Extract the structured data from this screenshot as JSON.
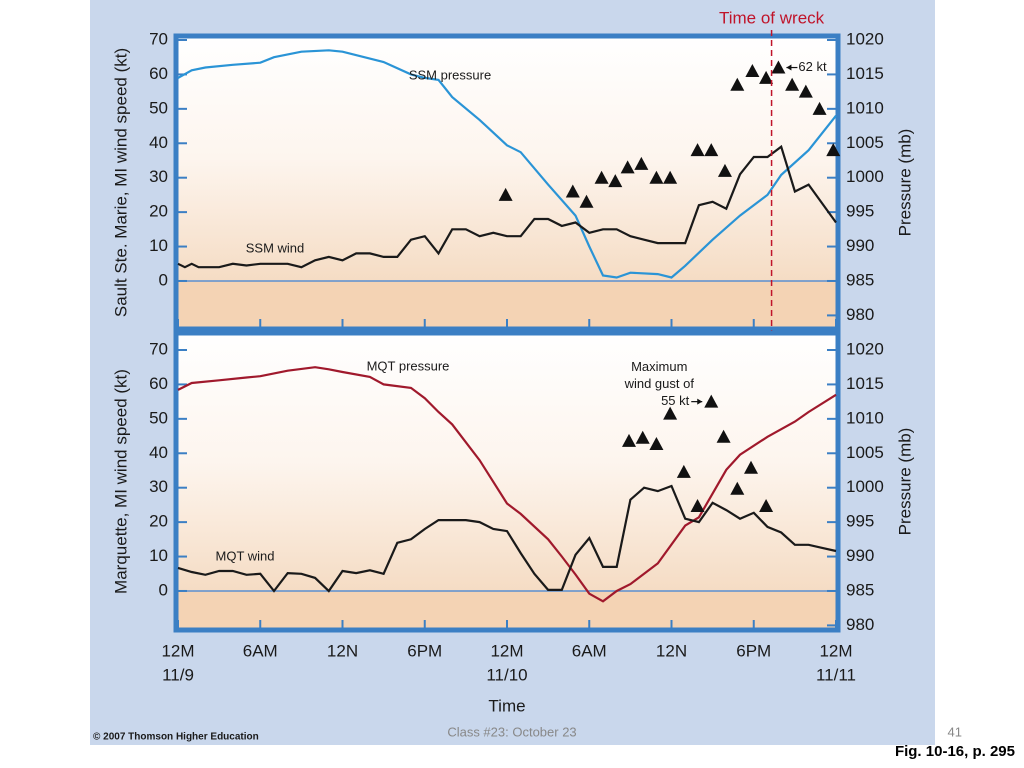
{
  "chart_data": [
    {
      "type": "line",
      "ylabel": "Sault Ste. Marie, MI wind speed (kt)",
      "y2label": "Pressure (mb)",
      "xlim": [
        0,
        48
      ],
      "ylim": [
        -10,
        70
      ],
      "yticks": [
        0,
        10,
        20,
        30,
        40,
        50,
        60,
        70
      ],
      "y2lim": [
        980,
        1020
      ],
      "y2ticks": [
        980,
        985,
        990,
        995,
        1000,
        1005,
        1010,
        1015,
        1020
      ],
      "marker_line": {
        "label": "Time of wreck",
        "x": 43.3,
        "color": "#c0142a"
      },
      "annotation": {
        "lines": [
          "62 kt"
        ],
        "series": 2,
        "point": 15
      },
      "series": [
        {
          "name": "SSM pressure",
          "color": "#2a94d6",
          "axis": "y2",
          "x": [
            0,
            1,
            2,
            4,
            6,
            7,
            9,
            11,
            12,
            15,
            17,
            18,
            19,
            20,
            22,
            24,
            25,
            27,
            29,
            30,
            31,
            32,
            33,
            35,
            36,
            37,
            39,
            41,
            43,
            44,
            46,
            48
          ],
          "values": [
            1014.5,
            1015.6,
            1016,
            1016.4,
            1016.7,
            1017.5,
            1018.3,
            1018.5,
            1018.3,
            1016.8,
            1015,
            1014.5,
            1014.2,
            1011.7,
            1008.4,
            1004.7,
            1003.7,
            999,
            994.5,
            990,
            985.8,
            985.5,
            986.2,
            986,
            985.5,
            987.2,
            991,
            994.5,
            997.5,
            1000.4,
            1004,
            1009
          ]
        },
        {
          "name": "SSM wind",
          "color": "#1a1a1a",
          "x": [
            0,
            0.5,
            1,
            1.5,
            2,
            3,
            4,
            5,
            6,
            8,
            9,
            10,
            11,
            12,
            13,
            14,
            15,
            16,
            17,
            18,
            19,
            20,
            21,
            22,
            23,
            24,
            25,
            26,
            27,
            28,
            29,
            30,
            31,
            32,
            33,
            34,
            35,
            36,
            37,
            38,
            39,
            40,
            41,
            42,
            43,
            44,
            45,
            46,
            48
          ],
          "values": [
            5,
            4,
            5,
            4,
            4,
            4,
            5,
            4.5,
            5,
            5,
            4,
            6,
            7,
            6,
            8,
            8,
            7,
            7,
            12,
            13,
            8,
            15,
            15,
            13,
            14,
            13,
            13,
            18,
            18,
            16,
            17,
            14,
            15,
            15,
            13,
            12,
            11,
            11,
            11,
            22,
            23,
            21,
            31,
            36,
            36,
            39,
            26,
            28,
            17
          ]
        },
        {
          "marker": "triangle",
          "color": "#111111",
          "x": [
            23.9,
            28.8,
            29.8,
            30.9,
            31.9,
            32.8,
            33.8,
            34.9,
            35.9,
            37.9,
            38.9,
            39.9,
            40.8,
            41.9,
            42.9,
            43.8,
            44.8,
            45.8,
            46.8,
            47.8
          ],
          "values": [
            25,
            26,
            23,
            30,
            29,
            33,
            34,
            30,
            30,
            38,
            38,
            32,
            57,
            61,
            59,
            62,
            57,
            55,
            50,
            38
          ]
        }
      ]
    },
    {
      "type": "line",
      "ylabel": "Marquette, MI wind speed (kt)",
      "y2label": "Pressure (mb)",
      "xlabel": "Time",
      "xlim": [
        0,
        48
      ],
      "ylim": [
        -10,
        70
      ],
      "yticks": [
        0,
        10,
        20,
        30,
        40,
        50,
        60,
        70
      ],
      "y2lim": [
        980,
        1020
      ],
      "y2ticks": [
        980,
        985,
        990,
        995,
        1000,
        1005,
        1010,
        1015,
        1020
      ],
      "xticks": [
        {
          "value": 0,
          "label": "12M"
        },
        {
          "value": 6,
          "label": "6AM"
        },
        {
          "value": 12,
          "label": "12N"
        },
        {
          "value": 18,
          "label": "6PM"
        },
        {
          "value": 24,
          "label": "12M"
        },
        {
          "value": 30,
          "label": "6AM"
        },
        {
          "value": 36,
          "label": "12N"
        },
        {
          "value": 42,
          "label": "6PM"
        },
        {
          "value": 48,
          "label": "12M"
        }
      ],
      "x_dates": [
        {
          "value": 0,
          "label": "11/9"
        },
        {
          "value": 24,
          "label": "11/10"
        },
        {
          "value": 48,
          "label": "11/11"
        }
      ],
      "annotation": {
        "lines": [
          "Maximum",
          "wind gust of",
          "55 kt"
        ],
        "series": 2,
        "point": 6
      },
      "series": [
        {
          "name": "MQT pressure",
          "color": "#a0192c",
          "axis": "y2",
          "x": [
            0,
            1,
            3,
            5,
            6,
            8,
            10,
            11,
            12,
            14,
            15,
            17,
            18,
            19,
            20,
            22,
            24,
            25,
            27,
            28,
            29,
            30,
            31,
            32,
            33,
            35,
            37,
            38,
            40,
            41,
            43,
            45,
            46,
            48
          ],
          "values": [
            1014.2,
            1015.2,
            1015.6,
            1016,
            1016.2,
            1017,
            1017.5,
            1017.2,
            1016.8,
            1016.1,
            1015,
            1014.5,
            1013,
            1011,
            1009.2,
            1004,
            997.7,
            996.2,
            992.5,
            990,
            987.4,
            984.6,
            983.5,
            985,
            986,
            989,
            994.5,
            995.7,
            1002.6,
            1004.8,
            1007.4,
            1009.6,
            1011,
            1013.5
          ]
        },
        {
          "name": "MQT wind",
          "color": "#1a1a1a",
          "x": [
            0,
            1,
            2,
            3,
            4,
            5,
            6,
            7,
            8,
            9,
            10,
            11,
            12,
            13,
            14,
            15,
            16,
            17,
            18,
            19,
            20,
            21,
            22,
            23,
            24,
            25,
            26,
            27,
            28,
            29,
            30,
            31,
            32,
            33,
            34,
            35,
            36,
            37,
            38,
            39,
            40,
            41,
            42,
            43,
            44,
            45,
            46,
            47,
            48
          ],
          "values": [
            6.7,
            5.5,
            4.7,
            5.8,
            5.8,
            4.7,
            5,
            0,
            5.2,
            5,
            3.8,
            0,
            5.8,
            5.2,
            6,
            5,
            14,
            15,
            18,
            20.6,
            20.6,
            20.6,
            20,
            18,
            17.4,
            11,
            5,
            0.3,
            0.3,
            10.5,
            15.4,
            7,
            7,
            26.5,
            30,
            29,
            30.5,
            21,
            20,
            25.6,
            23.5,
            21,
            22.7,
            18.6,
            17,
            13.4,
            13.4,
            12.5,
            11.6
          ]
        },
        {
          "marker": "triangle",
          "color": "#111111",
          "x": [
            32.9,
            33.9,
            34.9,
            35.9,
            36.9,
            37.9,
            38.9,
            39.8,
            40.8,
            41.8,
            42.9
          ],
          "values": [
            43.6,
            44.5,
            42.7,
            51.5,
            34.6,
            24.7,
            55,
            44.8,
            29.7,
            35.8,
            24.7
          ]
        }
      ]
    }
  ],
  "footer": {
    "copyright": "© 2007 Thomson Higher Education",
    "class": "Class #23:  October 23",
    "page": "41",
    "figure": "Fig. 10-16, p. 295"
  }
}
